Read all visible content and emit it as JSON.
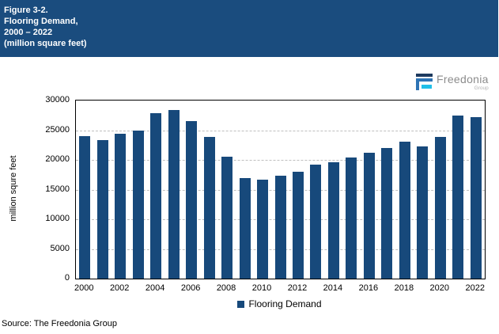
{
  "header": {
    "lines": [
      "Figure 3-2.",
      "Flooring Demand,",
      "2000 – 2022",
      "(million square feet)"
    ]
  },
  "logo": {
    "name": "Freedonia",
    "sub": "Group"
  },
  "chart_data": {
    "type": "bar",
    "title": "Flooring Demand, 2000 – 2022 (million square feet)",
    "categories": [
      2000,
      2001,
      2002,
      2003,
      2004,
      2005,
      2006,
      2007,
      2008,
      2009,
      2010,
      2011,
      2012,
      2013,
      2014,
      2015,
      2016,
      2017,
      2018,
      2019,
      2020,
      2021,
      2022
    ],
    "values": [
      24000,
      23400,
      24400,
      24900,
      27900,
      28400,
      26500,
      23900,
      20500,
      16900,
      16700,
      17300,
      18000,
      19200,
      19600,
      20400,
      21200,
      22000,
      23100,
      22300,
      23900,
      27500,
      27200
    ],
    "series_name": "Flooring Demand",
    "xlabel": "",
    "ylabel": "million squre feet",
    "ylim": [
      0,
      30000
    ],
    "yticks": [
      0,
      5000,
      10000,
      15000,
      20000,
      25000,
      30000
    ],
    "xtick_labels": [
      "2000",
      "2002",
      "2004",
      "2006",
      "2008",
      "2010",
      "2012",
      "2014",
      "2016",
      "2018",
      "2020",
      "2022"
    ],
    "grid": "horizontal-dashed",
    "legend_position": "bottom",
    "bar_color": "#17497B"
  },
  "legend": {
    "label": "Flooring Demand"
  },
  "footer": {
    "source": "Source: The Freedonia Group"
  },
  "colors": {
    "header_bg": "#1A4C7E",
    "bar": "#17497B",
    "grid": "#BFBFBF",
    "axis_border": "#000000",
    "logo_navy": "#1E3A5F",
    "logo_blue": "#2E74B5",
    "logo_cyan": "#1FBFE8",
    "logo_text": "#8C8C8C"
  }
}
